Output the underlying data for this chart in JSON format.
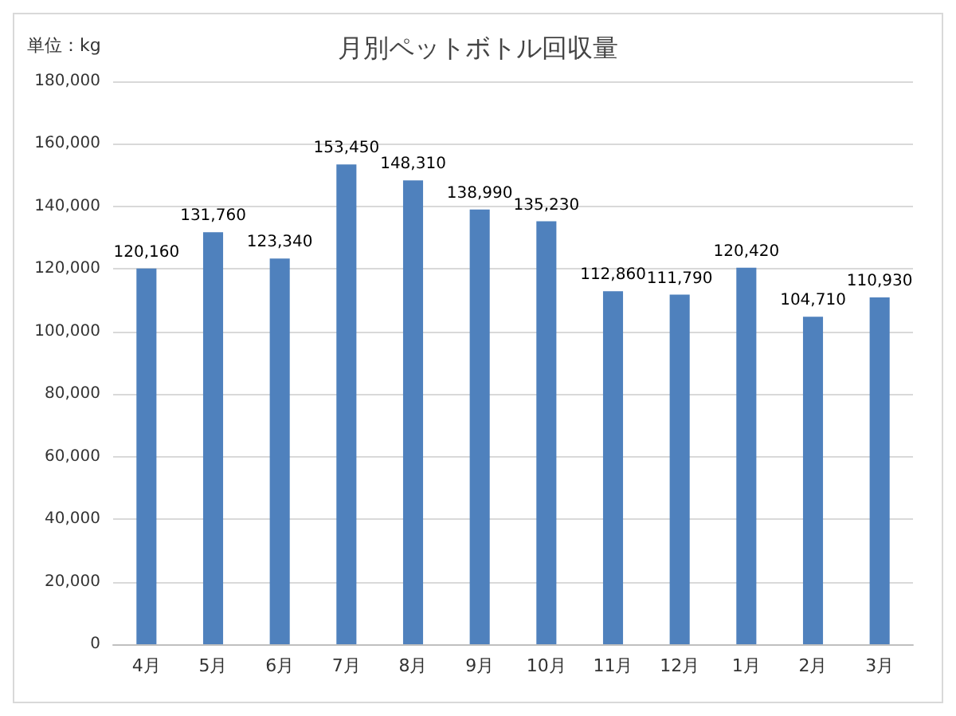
{
  "chart_data": {
    "type": "bar",
    "title": "月別ペットボトル回収量",
    "annotations": [
      "単位：kg"
    ],
    "categories": [
      "4月",
      "5月",
      "6月",
      "7月",
      "8月",
      "9月",
      "10月",
      "11月",
      "12月",
      "1月",
      "2月",
      "3月"
    ],
    "values": [
      120160,
      131760,
      123340,
      153450,
      148310,
      138990,
      135230,
      112860,
      111790,
      120420,
      104710,
      110930
    ],
    "value_labels": [
      "120,160",
      "131,760",
      "123,340",
      "153,450",
      "148,310",
      "138,990",
      "135,230",
      "112,860",
      "111,790",
      "120,420",
      "104,710",
      "110,930"
    ],
    "color": "#4f81bd",
    "ylim": [
      0,
      180000
    ],
    "yticks": [
      0,
      {
        "value": 20000,
        "label": "20,000"
      },
      {
        "value": 40000,
        "label": "40,000"
      },
      {
        "value": 60000,
        "label": "60,000"
      },
      {
        "value": 80000,
        "label": "80,000"
      },
      {
        "value": 100000,
        "label": "100,000"
      },
      {
        "value": 120000,
        "label": "120,000"
      },
      {
        "value": 140000,
        "label": "140,000"
      },
      {
        "value": 160000,
        "label": "160,000"
      },
      {
        "value": 180000,
        "label": "180,000"
      }
    ],
    "grid": "y"
  }
}
